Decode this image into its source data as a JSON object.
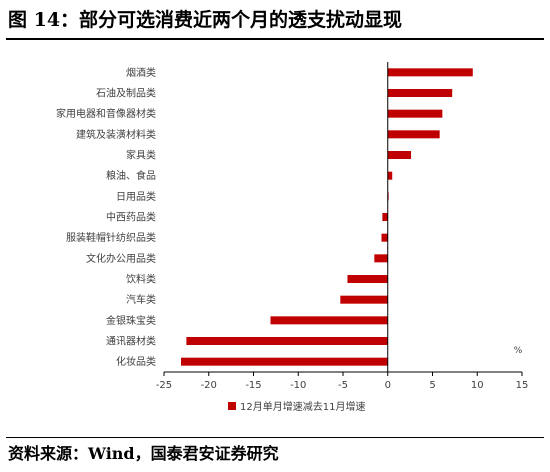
{
  "figure_title": "图 14：部分可选消费近两个月的透支扰动显现",
  "source_note": "资料来源：Wind，国泰君安证券研究",
  "colors": {
    "bar": "#c00000",
    "axis": "#000000",
    "text": "#404040"
  },
  "chart_data": {
    "type": "bar",
    "orientation": "horizontal",
    "categories": [
      "烟酒类",
      "石油及制品类",
      "家用电器和音像器材类",
      "建筑及装潢材料类",
      "家具类",
      "粮油、食品",
      "日用品类",
      "中西药品类",
      "服装鞋帽针纺织品类",
      "文化办公用品类",
      "饮料类",
      "汽车类",
      "金银珠宝类",
      "通讯器材类",
      "化妆品类"
    ],
    "series": [
      {
        "name": "12月单月增速减去11月增速",
        "values": [
          9.5,
          7.2,
          6.1,
          5.8,
          2.6,
          0.5,
          0.1,
          -0.6,
          -0.7,
          -1.5,
          -4.5,
          -5.3,
          -13.1,
          -22.5,
          -23.1
        ]
      }
    ],
    "xlim": [
      -25,
      15
    ],
    "xticks": [
      -25,
      -20,
      -15,
      -10,
      -5,
      0,
      5,
      10,
      15
    ],
    "xtick_labels": [
      "-25",
      "-20",
      "-15",
      "-10",
      "-5",
      "0",
      "5",
      "10",
      "15"
    ],
    "unit_label": "%",
    "legend_position": "bottom",
    "grid": false
  }
}
